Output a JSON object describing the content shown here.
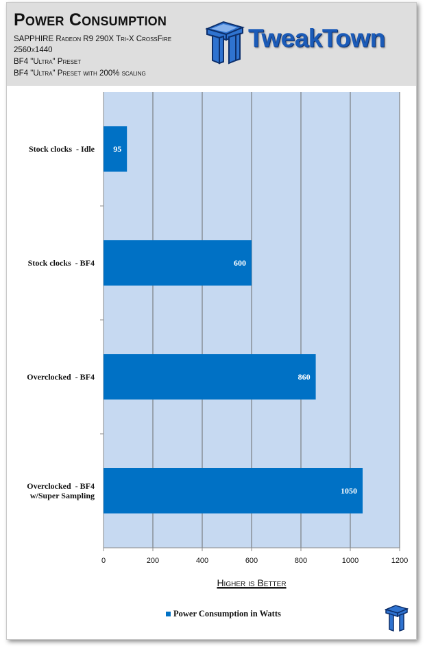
{
  "header": {
    "title": "Power Consumption",
    "subtitles": [
      "SAPPHIRE Radeon R9 290X Tri-X CrossFire",
      "2560x1440",
      "BF4 \"Ultra\" Preset",
      "BF4 \"Ultra\" Preset with 200% scaling"
    ],
    "logo_text": "TweakTown"
  },
  "colors": {
    "bar": "#0071c5",
    "plot_background": "#c6d9f1",
    "header_background": "#dedede",
    "logo_blue": "#1b5bb8"
  },
  "chart_data": {
    "type": "bar",
    "orientation": "horizontal",
    "categories": [
      [
        "Stock clocks  - Idle"
      ],
      [
        "Stock clocks  - BF4"
      ],
      [
        "Overclocked  - BF4"
      ],
      [
        "Overclocked  - BF4",
        "w/Super Sampling"
      ]
    ],
    "series": [
      {
        "name": "Power Consumption in Watts",
        "values": [
          95,
          600,
          860,
          1050
        ]
      }
    ],
    "data_labels": [
      "95",
      "600",
      "860",
      "1050"
    ],
    "xlim": [
      0,
      1200
    ],
    "xticks": [
      0,
      200,
      400,
      600,
      800,
      1000,
      1200
    ],
    "xtick_labels": [
      "0",
      "200",
      "400",
      "600",
      "800",
      "1000",
      "1200"
    ],
    "xlabel": "Higher is Better",
    "grid": "vertical",
    "legend": "bottom-center"
  },
  "legend": {
    "label": "Power Consumption in Watts"
  }
}
